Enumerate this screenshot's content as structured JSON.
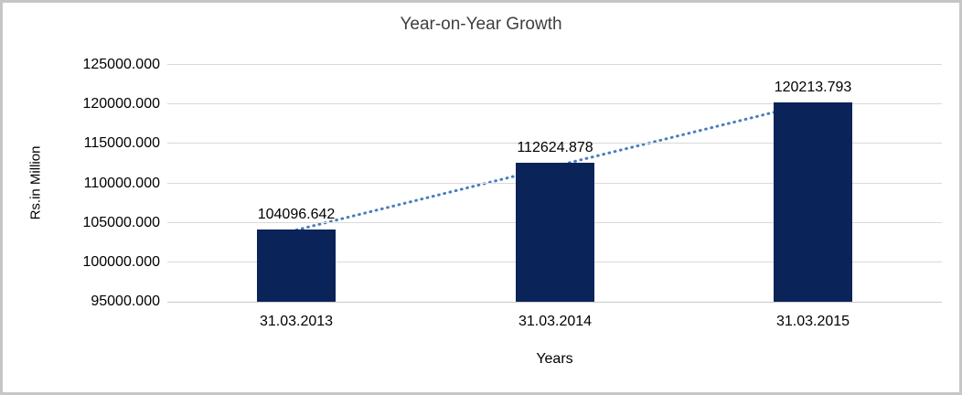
{
  "chart_data": {
    "type": "bar",
    "title": "Year-on-Year Growth",
    "xlabel": "Years",
    "ylabel": "Rs.in Million",
    "categories": [
      "31.03.2013",
      "31.03.2014",
      "31.03.2015"
    ],
    "values": [
      104096.642,
      112624.878,
      120213.793
    ],
    "data_labels": [
      "104096.642",
      "112624.878",
      "120213.793"
    ],
    "ylim": [
      95000,
      125000
    ],
    "ytick_step": 5000,
    "ytick_labels": [
      "95000.000",
      "100000.000",
      "105000.000",
      "110000.000",
      "115000.000",
      "120000.000",
      "125000.000"
    ],
    "grid": "horizontal",
    "legend": "none",
    "trendline": {
      "type": "linear",
      "style": "dotted",
      "color": "#4A7EBB"
    },
    "colors": {
      "bar": "#0A2359",
      "gridline": "#D9D9D9",
      "axis_line": "#C9C9C9",
      "title_text": "#3F3F3F",
      "label_text": "#000000",
      "frame_border": "#C6C6C6",
      "background": "#FFFFFF"
    }
  }
}
